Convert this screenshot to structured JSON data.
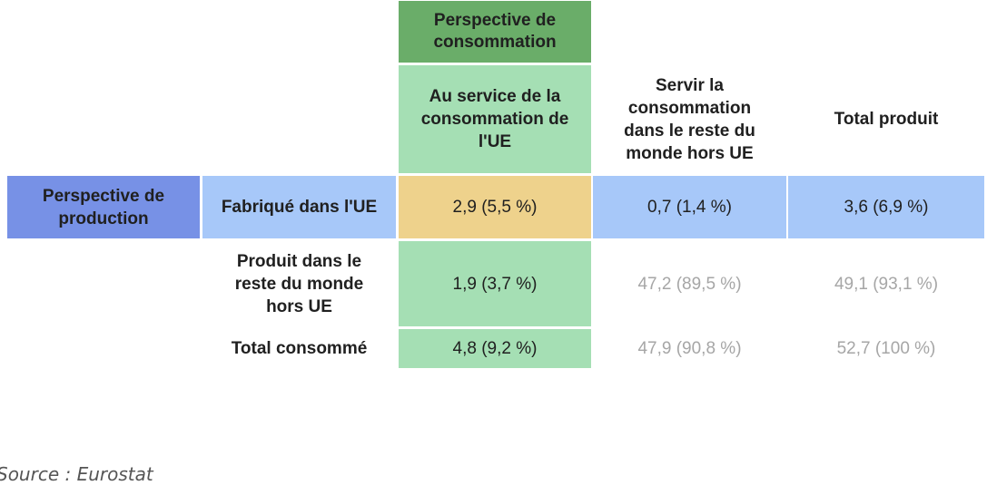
{
  "table": {
    "consumption_perspective": "Perspective de\nconsommation",
    "production_perspective": "Perspective de\nproduction",
    "columns": {
      "eu_service": "Au service de la\nconsommation de\nl'UE",
      "rest_world": "Servir la\nconsommation\ndans le reste du\nmonde hors UE",
      "total_produced": "Total produit"
    },
    "rows": [
      {
        "label": "Fabriqué dans l'UE",
        "eu_service": "2,9 (5,5 %)",
        "rest_world": "0,7 (1,4 %)",
        "total_produced": "3,6 (6,9 %)"
      },
      {
        "label": "Produit dans le\nreste du monde\nhors UE",
        "eu_service": "1,9 (3,7 %)",
        "rest_world": "47,2 (89,5 %)",
        "total_produced": "49,1 (93,1 %)"
      },
      {
        "label": "Total consommé",
        "eu_service": "4,8 (9,2 %)",
        "rest_world": "47,9 (90,8 %)",
        "total_produced": "52,7 (100 %)"
      }
    ]
  },
  "source": "Source : Eurostat",
  "colors": {
    "green_dark": "#6aad69",
    "green_light": "#a5dfb4",
    "blue_dark": "#7791e6",
    "blue_light": "#a7c8f9",
    "orange": "#eed28c",
    "muted_text": "#a6a6a6"
  }
}
